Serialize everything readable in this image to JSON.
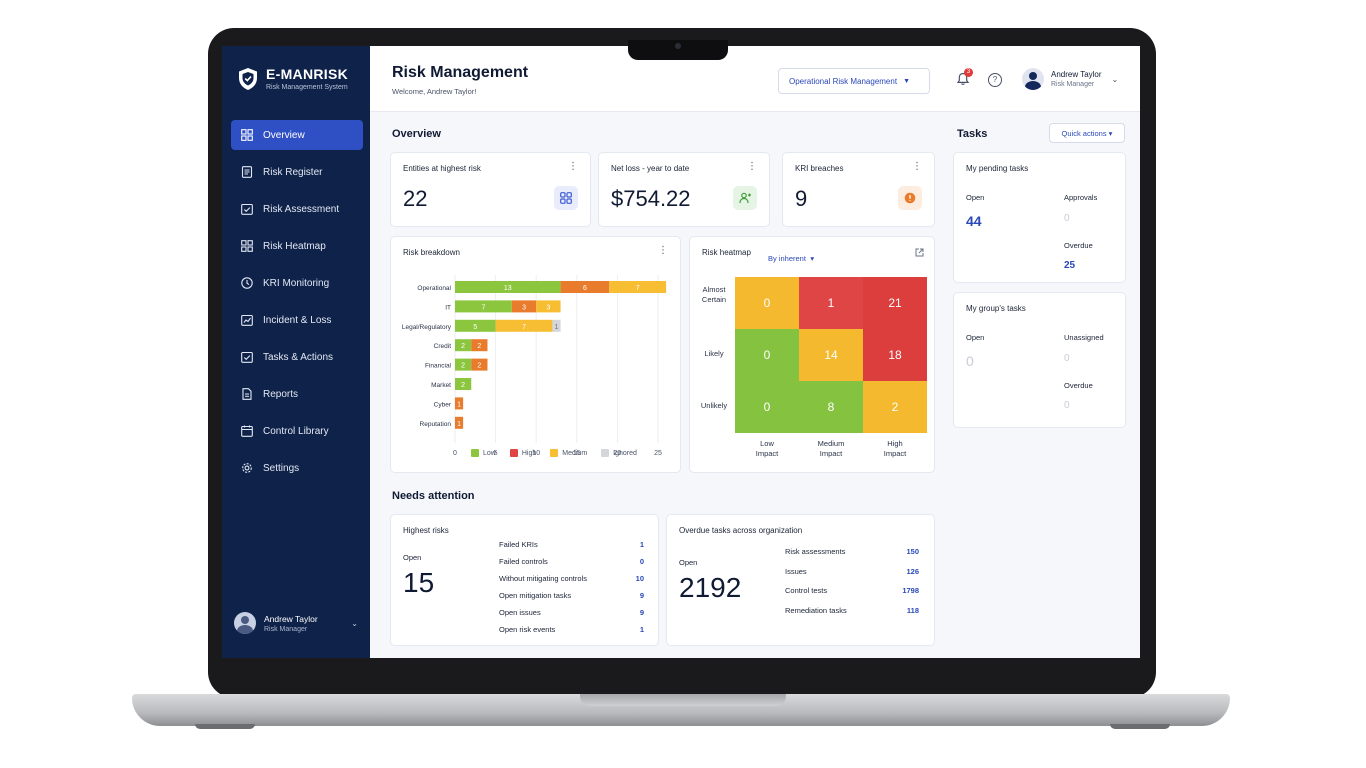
{
  "brand": {
    "name": "E-MANRISK",
    "subtitle": "Risk Management System"
  },
  "sidebar": {
    "items": [
      {
        "label": "Overview",
        "icon": "grid-icon",
        "active": true
      },
      {
        "label": "Risk Register",
        "icon": "register-icon"
      },
      {
        "label": "Risk Assessment",
        "icon": "assessment-icon"
      },
      {
        "label": "Risk Heatmap",
        "icon": "heatmap-icon"
      },
      {
        "label": "KRI Monitoring",
        "icon": "clock-icon"
      },
      {
        "label": "Incident & Loss",
        "icon": "incident-icon"
      },
      {
        "label": "Tasks & Actions",
        "icon": "tasks-icon"
      },
      {
        "label": "Reports",
        "icon": "reports-icon"
      },
      {
        "label": "Control Library",
        "icon": "library-icon"
      },
      {
        "label": "Settings",
        "icon": "gear-icon"
      }
    ],
    "user": {
      "name": "Andrew Taylor",
      "role": "Risk Manager"
    }
  },
  "header": {
    "title": "Risk Management",
    "welcome": "Welcome, Andrew Taylor!",
    "module": "Operational Risk Management",
    "notifications": "3",
    "user": {
      "name": "Andrew Taylor",
      "role": "Risk Manager"
    }
  },
  "overview": {
    "title": "Overview",
    "kpis": [
      {
        "label": "Entities at highest risk",
        "value": "22",
        "icon": "grid-icon",
        "color": "#3d5bd4",
        "bg": "#e9edfb"
      },
      {
        "label": "Net loss - year to date",
        "value": "$754.22",
        "icon": "users-icon",
        "color": "#3f9e3a",
        "bg": "#e6f4e5"
      },
      {
        "label": "KRI breaches",
        "value": "9",
        "icon": "alert-icon",
        "color": "#e97b2b",
        "bg": "#fdece0"
      }
    ]
  },
  "breakdown": {
    "title": "Risk breakdown",
    "legend": [
      "Low",
      "High",
      "Medium",
      "Ignored"
    ]
  },
  "chart_data": {
    "type": "bar",
    "orientation": "horizontal",
    "stacked": true,
    "categories": [
      "Operational",
      "IT",
      "Legal/Regulatory",
      "Credit",
      "Financial",
      "Market",
      "Cyber",
      "Reputation"
    ],
    "series": [
      {
        "name": "Low",
        "color": "#8cc63f",
        "values": [
          13,
          7,
          5,
          2,
          2,
          2,
          0,
          0
        ]
      },
      {
        "name": "High",
        "color": "#e87b2c",
        "values": [
          6,
          3,
          0,
          2,
          2,
          0,
          1,
          1
        ]
      },
      {
        "name": "Medium",
        "color": "#f7bd33",
        "values": [
          7,
          3,
          7,
          0,
          0,
          0,
          0,
          0
        ]
      },
      {
        "name": "Ignored",
        "color": "#d4d6db",
        "values": [
          0,
          0,
          1,
          0,
          0,
          0,
          0,
          0
        ]
      }
    ],
    "xlim": [
      0,
      25
    ],
    "xticks": [
      0,
      5,
      10,
      15,
      20,
      25
    ]
  },
  "heatmap": {
    "title": "Risk heatmap",
    "mode": "By inherent",
    "rows": [
      "Almost Certain",
      "Likely",
      "Unlikely"
    ],
    "cols": [
      "Low Impact",
      "Medium Impact",
      "High Impact"
    ],
    "cells": [
      [
        {
          "v": "0",
          "c": "#f5b92f"
        },
        {
          "v": "1",
          "c": "#e04545"
        },
        {
          "v": "21",
          "c": "#dc3d3d"
        }
      ],
      [
        {
          "v": "0",
          "c": "#85c240"
        },
        {
          "v": "14",
          "c": "#f5b92f"
        },
        {
          "v": "18",
          "c": "#dc3d3d"
        }
      ],
      [
        {
          "v": "0",
          "c": "#85c240"
        },
        {
          "v": "8",
          "c": "#85c240"
        },
        {
          "v": "2",
          "c": "#f5b92f"
        }
      ]
    ]
  },
  "tasks": {
    "title": "Tasks",
    "quick_actions": "Quick actions",
    "pending": {
      "title": "My pending tasks",
      "open_label": "Open",
      "open": "44",
      "approvals_label": "Approvals",
      "approvals": "0",
      "overdue_label": "Overdue",
      "overdue": "25"
    },
    "group": {
      "title": "My group's tasks",
      "open_label": "Open",
      "open": "0",
      "unassigned_label": "Unassigned",
      "unassigned": "0",
      "overdue_label": "Overdue",
      "overdue": "0"
    }
  },
  "attention": {
    "title": "Needs attention",
    "highest": {
      "title": "Highest risks",
      "open_label": "Open",
      "open": "15",
      "rows": [
        {
          "label": "Failed KRIs",
          "value": "1"
        },
        {
          "label": "Failed controls",
          "value": "0"
        },
        {
          "label": "Without mitigating controls",
          "value": "10"
        },
        {
          "label": "Open mitigation tasks",
          "value": "9"
        },
        {
          "label": "Open issues",
          "value": "9"
        },
        {
          "label": "Open risk events",
          "value": "1"
        }
      ]
    },
    "overdue": {
      "title": "Overdue tasks across organization",
      "open_label": "Open",
      "open": "2192",
      "rows": [
        {
          "label": "Risk assessments",
          "value": "150"
        },
        {
          "label": "Issues",
          "value": "126"
        },
        {
          "label": "Control tests",
          "value": "1798"
        },
        {
          "label": "Remediation tasks",
          "value": "118"
        }
      ]
    }
  }
}
